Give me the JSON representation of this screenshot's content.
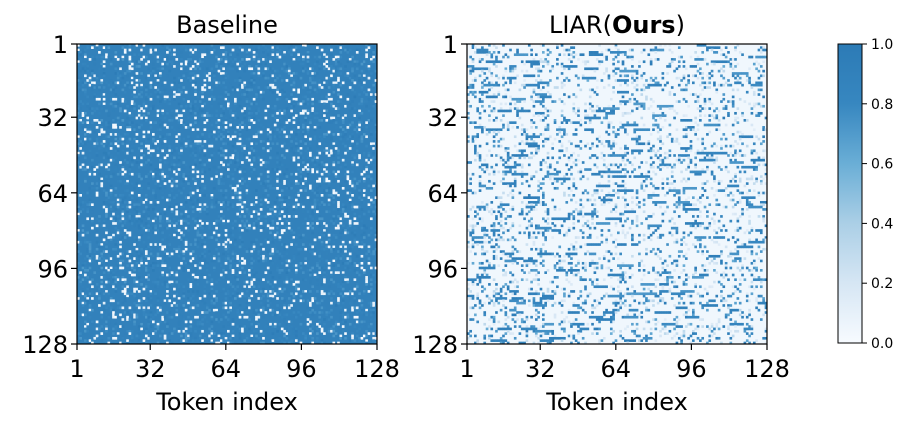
{
  "chart_data": [
    {
      "type": "heatmap",
      "title": "Baseline",
      "xlabel": "Token index",
      "ylabel": "",
      "x_ticks": [
        "1",
        "32",
        "64",
        "96",
        "128"
      ],
      "y_ticks": [
        "1",
        "32",
        "64",
        "96",
        "128"
      ],
      "grid_size": 128,
      "value_range": [
        0,
        1
      ],
      "pattern": "dense: nearly all cells high (~0.75-0.95) with scattered white (~0.0-0.1) speckles"
    },
    {
      "type": "heatmap",
      "title_prefix": "LIAR(",
      "title_bold": "Ours",
      "title_suffix": ")",
      "xlabel": "Token index",
      "ylabel": "",
      "x_ticks": [
        "1",
        "32",
        "64",
        "96",
        "128"
      ],
      "y_ticks": [
        "1",
        "32",
        "64",
        "96",
        "128"
      ],
      "grid_size": 128,
      "value_range": [
        0,
        1
      ],
      "pattern": "sparse: mostly near-white cells (~0.0-0.1) with scattered blue (~0.6-0.95) cells and short horizontal runs"
    }
  ],
  "colorbar": {
    "colormap": "Blues",
    "tick_labels": [
      "0.0",
      "0.2",
      "0.4",
      "0.6",
      "0.8",
      "1.0"
    ],
    "range": [
      0,
      1
    ]
  },
  "colors": {
    "low": "#f7fbff",
    "high": "#2c7bb6"
  }
}
